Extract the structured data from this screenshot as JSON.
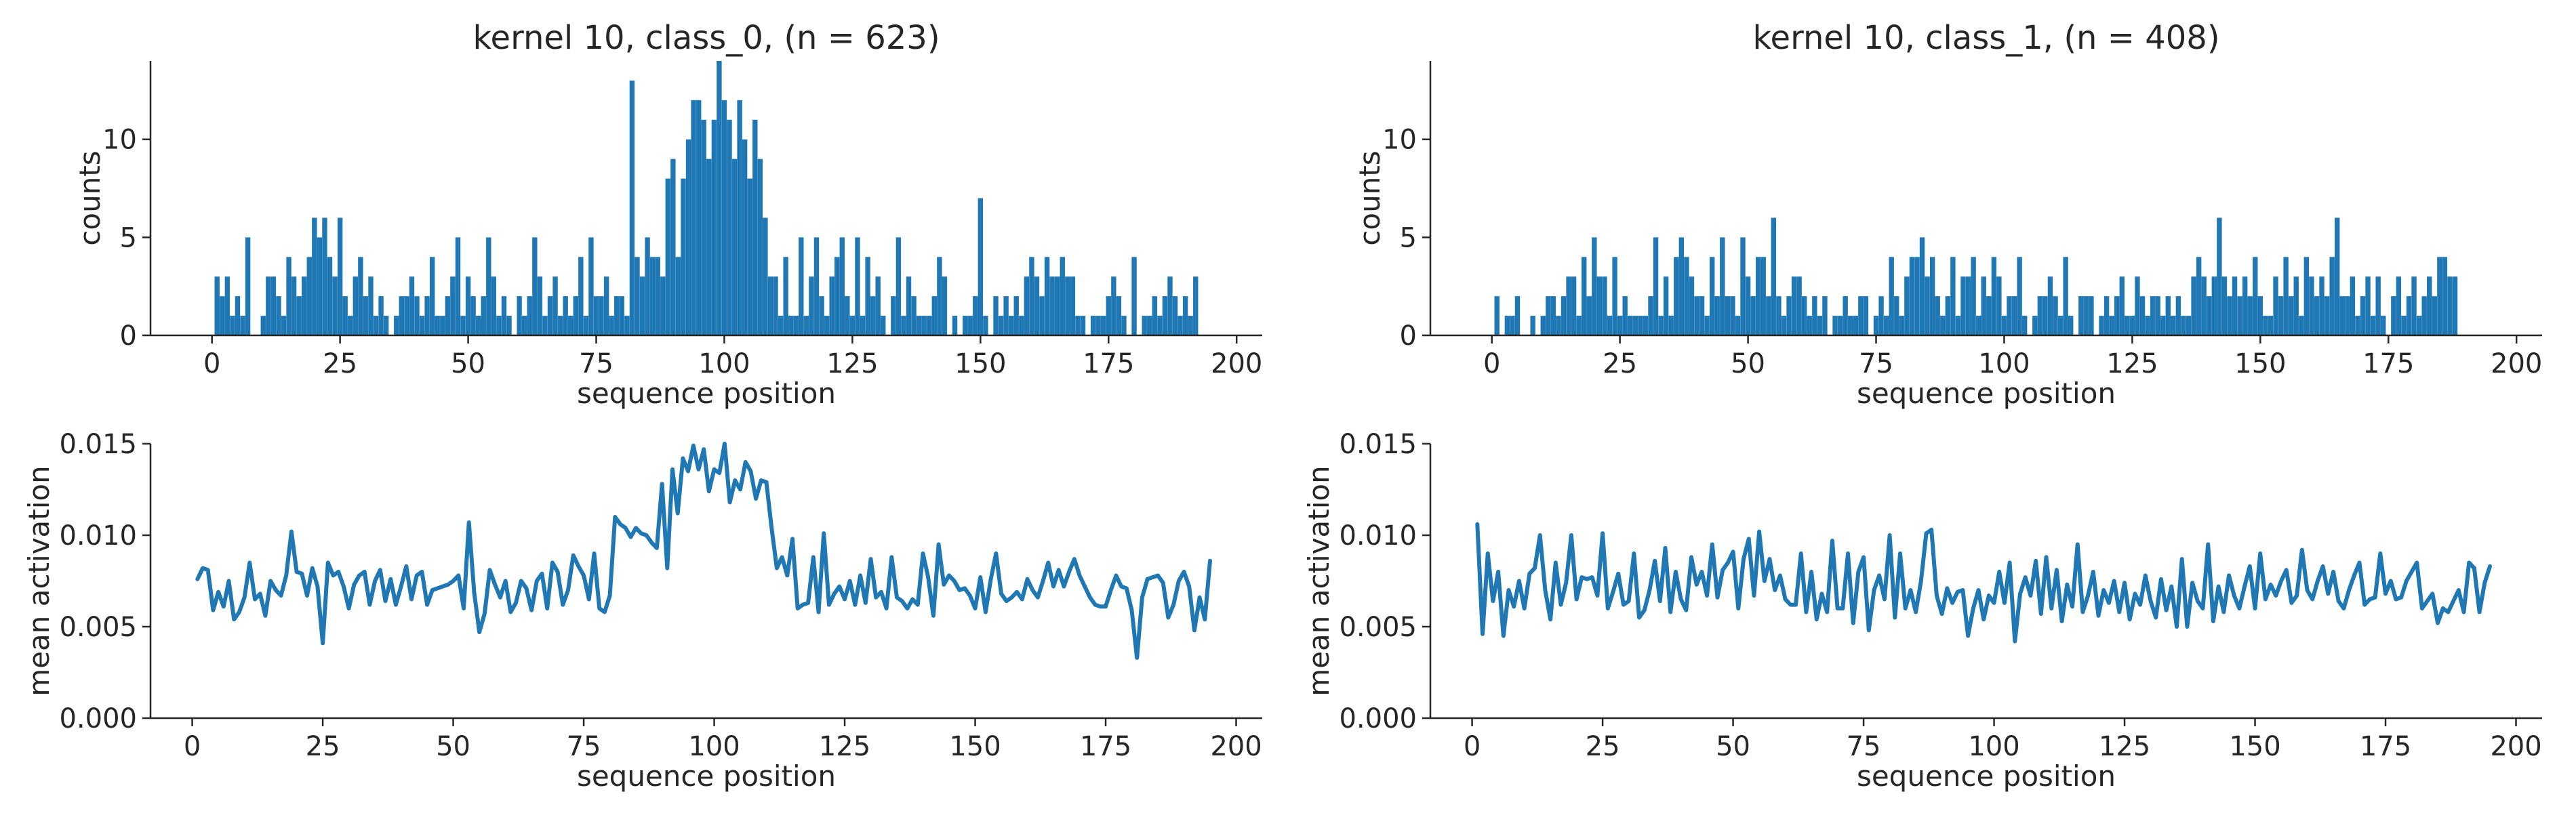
{
  "colors": {
    "series": "#1f77b4",
    "axes": "#262626",
    "background": "#ffffff"
  },
  "chart_data": [
    {
      "type": "bar",
      "title": "kernel 10, class_0, (n = 623)",
      "xlabel": "sequence position",
      "ylabel": "counts",
      "xlim": [
        -12,
        205
      ],
      "ylim": [
        0,
        14
      ],
      "xticks": [
        "0",
        "25",
        "50",
        "75",
        "100",
        "125",
        "150",
        "175",
        "200"
      ],
      "yticks": [
        "0",
        "5",
        "10"
      ],
      "grid": false,
      "x_start": 1,
      "values": [
        3,
        2,
        3,
        1,
        2,
        1,
        5,
        0,
        0,
        1,
        3,
        3,
        2,
        1,
        4,
        3,
        2,
        3,
        4,
        6,
        5,
        6,
        4,
        3,
        6,
        2,
        1,
        3,
        4,
        2,
        3,
        1,
        2,
        1,
        0,
        1,
        2,
        2,
        3,
        2,
        1,
        2,
        4,
        1,
        1,
        2,
        3,
        5,
        1,
        3,
        2,
        1,
        2,
        5,
        3,
        1,
        2,
        1,
        0,
        2,
        1,
        2,
        5,
        3,
        1,
        2,
        3,
        1,
        2,
        1,
        2,
        4,
        1,
        5,
        2,
        2,
        3,
        1,
        2,
        2,
        1,
        13,
        4,
        3,
        5,
        4,
        4,
        3,
        8,
        9,
        4,
        8,
        10,
        12,
        12,
        11,
        9,
        11,
        14,
        12,
        11,
        9,
        12,
        10,
        8,
        11,
        9,
        6,
        3,
        3,
        1,
        4,
        1,
        1,
        5,
        1,
        3,
        5,
        2,
        1,
        3,
        4,
        5,
        2,
        1,
        5,
        1,
        4,
        2,
        3,
        1,
        0,
        2,
        5,
        1,
        3,
        2,
        1,
        1,
        1,
        2,
        4,
        3,
        0,
        1,
        0,
        1,
        1,
        2,
        7,
        1,
        0,
        2,
        1,
        2,
        1,
        2,
        1,
        3,
        4,
        3,
        2,
        4,
        3,
        3,
        4,
        3,
        3,
        1,
        1,
        0,
        1,
        1,
        1,
        2,
        3,
        2,
        1,
        0,
        4,
        0,
        1,
        1,
        2,
        1,
        2,
        3,
        2,
        1,
        2,
        1,
        3
      ]
    },
    {
      "type": "bar",
      "title": "kernel 10, class_1, (n = 408)",
      "xlabel": "sequence position",
      "ylabel": "counts",
      "xlim": [
        -12,
        205
      ],
      "ylim": [
        0,
        14
      ],
      "xticks": [
        "0",
        "25",
        "50",
        "75",
        "100",
        "125",
        "150",
        "175",
        "200"
      ],
      "yticks": [
        "0",
        "5",
        "10"
      ],
      "grid": false,
      "x_start": 1,
      "values": [
        2,
        0,
        1,
        1,
        2,
        0,
        0,
        1,
        0,
        1,
        2,
        2,
        1,
        2,
        3,
        3,
        1,
        4,
        2,
        5,
        3,
        3,
        1,
        4,
        1,
        2,
        1,
        1,
        1,
        1,
        2,
        5,
        1,
        3,
        1,
        4,
        5,
        4,
        3,
        2,
        2,
        1,
        4,
        2,
        5,
        2,
        2,
        1,
        5,
        3,
        2,
        4,
        4,
        2,
        6,
        2,
        1,
        2,
        3,
        3,
        2,
        1,
        2,
        1,
        2,
        0,
        1,
        1,
        2,
        1,
        1,
        2,
        2,
        0,
        1,
        2,
        1,
        4,
        2,
        1,
        3,
        4,
        4,
        5,
        3,
        4,
        2,
        1,
        2,
        4,
        1,
        3,
        3,
        4,
        1,
        3,
        2,
        4,
        3,
        1,
        2,
        2,
        4,
        1,
        0,
        1,
        2,
        2,
        3,
        2,
        1,
        4,
        1,
        0,
        2,
        2,
        2,
        0,
        1,
        2,
        1,
        2,
        3,
        1,
        1,
        3,
        2,
        1,
        2,
        2,
        1,
        2,
        1,
        2,
        1,
        1,
        3,
        4,
        3,
        2,
        3,
        6,
        3,
        2,
        3,
        2,
        3,
        2,
        4,
        2,
        1,
        1,
        3,
        2,
        4,
        2,
        3,
        1,
        4,
        3,
        2,
        3,
        2,
        4,
        6,
        2,
        2,
        3,
        1,
        2,
        3,
        1,
        3,
        1,
        0,
        2,
        3,
        1,
        2,
        3,
        1,
        2,
        3,
        2,
        4,
        4,
        3,
        3
      ]
    },
    {
      "type": "line",
      "title": "",
      "xlabel": "sequence position",
      "ylabel": "mean activation",
      "xlim": [
        -8,
        205
      ],
      "ylim": [
        0,
        0.015
      ],
      "xticks": [
        "0",
        "25",
        "50",
        "75",
        "100",
        "125",
        "150",
        "175",
        "200"
      ],
      "yticks": [
        "0.000",
        "0.005",
        "0.010",
        "0.015"
      ],
      "grid": false,
      "x_start": 1,
      "values": [
        0.0076,
        0.0082,
        0.0081,
        0.0059,
        0.0069,
        0.0061,
        0.0075,
        0.0054,
        0.0058,
        0.0066,
        0.0085,
        0.0065,
        0.0068,
        0.0056,
        0.0075,
        0.007,
        0.0067,
        0.0078,
        0.0102,
        0.008,
        0.0079,
        0.0067,
        0.0082,
        0.0072,
        0.0041,
        0.0085,
        0.0078,
        0.008,
        0.0072,
        0.006,
        0.0073,
        0.0078,
        0.008,
        0.0062,
        0.0075,
        0.0081,
        0.0064,
        0.0076,
        0.0062,
        0.0072,
        0.0083,
        0.0065,
        0.0078,
        0.008,
        0.0062,
        0.007,
        0.0071,
        0.0072,
        0.0073,
        0.0075,
        0.0078,
        0.006,
        0.0107,
        0.0069,
        0.0047,
        0.0057,
        0.0081,
        0.0073,
        0.0066,
        0.0075,
        0.0058,
        0.0063,
        0.0075,
        0.0071,
        0.0059,
        0.0075,
        0.0079,
        0.006,
        0.0085,
        0.008,
        0.0062,
        0.007,
        0.0089,
        0.0083,
        0.0078,
        0.0065,
        0.009,
        0.006,
        0.0058,
        0.0067,
        0.011,
        0.0106,
        0.0104,
        0.0099,
        0.0104,
        0.0101,
        0.01,
        0.0096,
        0.0093,
        0.0128,
        0.0082,
        0.0136,
        0.0112,
        0.0142,
        0.0135,
        0.0149,
        0.0136,
        0.0147,
        0.0124,
        0.0136,
        0.0134,
        0.015,
        0.0118,
        0.013,
        0.0125,
        0.014,
        0.0135,
        0.012,
        0.013,
        0.0129,
        0.0104,
        0.0082,
        0.0088,
        0.0078,
        0.0098,
        0.006,
        0.0062,
        0.0063,
        0.0088,
        0.0058,
        0.0101,
        0.0062,
        0.0068,
        0.0072,
        0.0065,
        0.0075,
        0.0062,
        0.0078,
        0.0063,
        0.0087,
        0.0066,
        0.0069,
        0.006,
        0.0088,
        0.0066,
        0.0064,
        0.006,
        0.0065,
        0.0062,
        0.009,
        0.0077,
        0.0056,
        0.0095,
        0.0073,
        0.0078,
        0.0075,
        0.007,
        0.0071,
        0.0067,
        0.006,
        0.0077,
        0.0058,
        0.0076,
        0.009,
        0.0068,
        0.0064,
        0.0066,
        0.0069,
        0.0065,
        0.0076,
        0.007,
        0.0066,
        0.0075,
        0.0085,
        0.0072,
        0.0081,
        0.0072,
        0.008,
        0.0087,
        0.0078,
        0.0072,
        0.0066,
        0.0062,
        0.0061,
        0.0061,
        0.007,
        0.0078,
        0.0072,
        0.0071,
        0.0059,
        0.0033,
        0.0066,
        0.0076,
        0.0077,
        0.0078,
        0.0074,
        0.0055,
        0.0062,
        0.0075,
        0.008,
        0.0072,
        0.0048,
        0.0066,
        0.0054,
        0.0086
      ]
    },
    {
      "type": "line",
      "title": "",
      "xlabel": "sequence position",
      "ylabel": "mean activation",
      "xlim": [
        -8,
        205
      ],
      "ylim": [
        0,
        0.015
      ],
      "xticks": [
        "0",
        "25",
        "50",
        "75",
        "100",
        "125",
        "150",
        "175",
        "200"
      ],
      "yticks": [
        "0.000",
        "0.005",
        "0.010",
        "0.015"
      ],
      "grid": false,
      "x_start": 1,
      "values": [
        0.0106,
        0.0046,
        0.009,
        0.0064,
        0.008,
        0.0045,
        0.007,
        0.0061,
        0.0075,
        0.006,
        0.0079,
        0.0082,
        0.01,
        0.007,
        0.0054,
        0.0085,
        0.0062,
        0.0074,
        0.01,
        0.0065,
        0.0077,
        0.0076,
        0.0077,
        0.0067,
        0.0101,
        0.006,
        0.0069,
        0.0079,
        0.0062,
        0.0064,
        0.009,
        0.0055,
        0.0059,
        0.007,
        0.0086,
        0.0064,
        0.0093,
        0.0058,
        0.008,
        0.0065,
        0.0059,
        0.0088,
        0.0073,
        0.008,
        0.0067,
        0.0095,
        0.0066,
        0.0081,
        0.0085,
        0.0091,
        0.006,
        0.0087,
        0.0098,
        0.0067,
        0.0102,
        0.0075,
        0.0087,
        0.007,
        0.0078,
        0.0065,
        0.0062,
        0.0062,
        0.009,
        0.0058,
        0.008,
        0.0054,
        0.0068,
        0.0058,
        0.0097,
        0.006,
        0.006,
        0.009,
        0.0052,
        0.008,
        0.0088,
        0.0048,
        0.007,
        0.0078,
        0.0065,
        0.01,
        0.0055,
        0.009,
        0.006,
        0.007,
        0.0058,
        0.0075,
        0.0101,
        0.0103,
        0.0067,
        0.0057,
        0.0071,
        0.0063,
        0.0069,
        0.007,
        0.0045,
        0.006,
        0.007,
        0.0054,
        0.0067,
        0.0063,
        0.008,
        0.0063,
        0.0085,
        0.0042,
        0.0068,
        0.0077,
        0.0067,
        0.0086,
        0.0057,
        0.0088,
        0.006,
        0.0081,
        0.0053,
        0.0073,
        0.0061,
        0.0095,
        0.0058,
        0.0067,
        0.008,
        0.0056,
        0.007,
        0.0063,
        0.0075,
        0.0058,
        0.0074,
        0.0054,
        0.0068,
        0.0062,
        0.0078,
        0.0064,
        0.0055,
        0.0076,
        0.0059,
        0.0072,
        0.005,
        0.0087,
        0.005,
        0.0074,
        0.0064,
        0.006,
        0.0095,
        0.0053,
        0.0072,
        0.0058,
        0.0078,
        0.0067,
        0.006,
        0.0072,
        0.0083,
        0.006,
        0.009,
        0.0065,
        0.0073,
        0.0067,
        0.0075,
        0.0081,
        0.0063,
        0.0067,
        0.0092,
        0.007,
        0.0065,
        0.0075,
        0.0083,
        0.0068,
        0.008,
        0.0064,
        0.006,
        0.007,
        0.0078,
        0.0085,
        0.0062,
        0.0065,
        0.0066,
        0.009,
        0.0068,
        0.0075,
        0.0065,
        0.0066,
        0.0075,
        0.008,
        0.0085,
        0.006,
        0.0064,
        0.0068,
        0.0052,
        0.006,
        0.0058,
        0.0064,
        0.007,
        0.0058,
        0.0085,
        0.0082,
        0.0058,
        0.0074,
        0.0083
      ]
    }
  ]
}
